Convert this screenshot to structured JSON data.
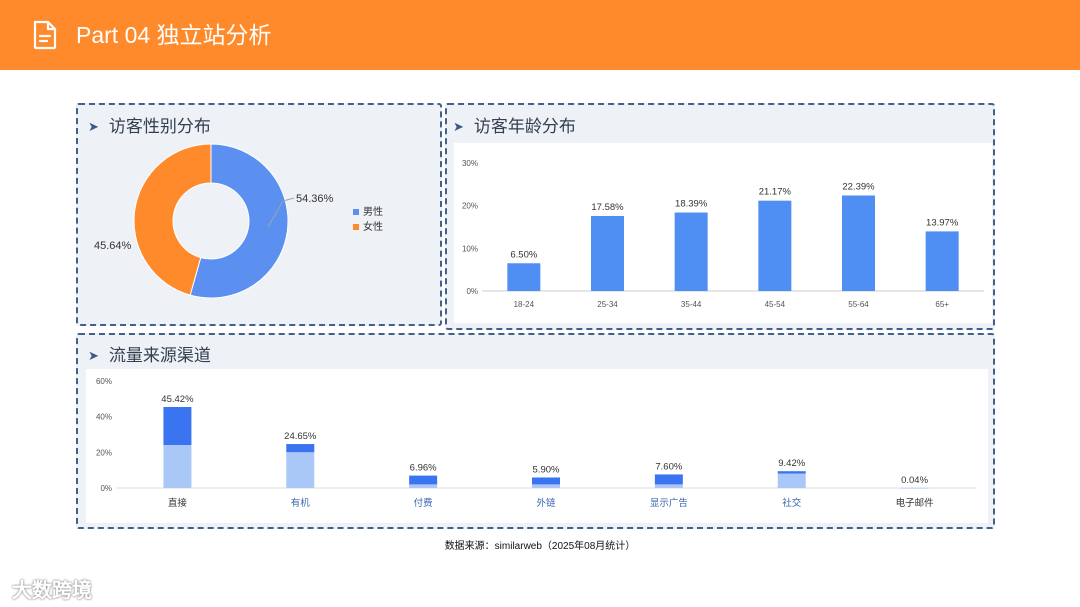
{
  "header": {
    "title": "Part 04 独立站分析",
    "icon": "document-icon",
    "background": "#ff8a2b"
  },
  "panels": {
    "gender": {
      "title": "访客性别分布"
    },
    "age": {
      "title": "访客年龄分布"
    },
    "traffic": {
      "title": "流量来源渠道"
    }
  },
  "source_note": "数据来源：similarweb（2025年08月统计）",
  "watermark": "大数跨境",
  "chart_data": [
    {
      "type": "pie",
      "title": "访客性别分布",
      "donut": true,
      "legend": "right",
      "slices": [
        {
          "name": "男性",
          "value": 54.36,
          "label": "54.36%",
          "color": "#5b8ff0"
        },
        {
          "name": "女性",
          "value": 45.64,
          "label": "45.64%",
          "color": "#ff8a2b"
        }
      ]
    },
    {
      "type": "bar",
      "title": "访客年龄分布",
      "categories": [
        "18-24",
        "25-34",
        "35-44",
        "45-54",
        "55-64",
        "65+"
      ],
      "values": [
        6.5,
        17.58,
        18.39,
        21.17,
        22.39,
        13.97
      ],
      "labels": [
        "6.50%",
        "17.58%",
        "18.39%",
        "21.17%",
        "22.39%",
        "13.97%"
      ],
      "yticks": [
        "0%",
        "10%",
        "20%",
        "30%"
      ],
      "ylim": [
        0,
        30
      ],
      "grid": false,
      "color": "#4f8ef2"
    },
    {
      "type": "bar",
      "title": "流量来源渠道",
      "stacked": true,
      "categories": [
        "直接",
        "有机",
        "付费",
        "外链",
        "显示广告",
        "社交",
        "电子邮件"
      ],
      "values": [
        45.42,
        24.65,
        6.96,
        5.9,
        7.6,
        9.42,
        0.04
      ],
      "labels": [
        "45.42%",
        "24.65%",
        "6.96%",
        "5.90%",
        "7.60%",
        "9.42%",
        "0.04%"
      ],
      "lower_values": [
        24.0,
        20.0,
        2.0,
        2.0,
        2.0,
        8.0,
        0.02
      ],
      "yticks": [
        "0%",
        "20%",
        "40%",
        "60%"
      ],
      "ylim": [
        0,
        60
      ],
      "grid": false,
      "colors": {
        "upper": "#3b74f0",
        "lower": "#a9c8f7"
      },
      "category_colors": [
        "#333333",
        "#3b67b0",
        "#3b67b0",
        "#3b67b0",
        "#3b67b0",
        "#3b67b0",
        "#333333"
      ]
    }
  ]
}
